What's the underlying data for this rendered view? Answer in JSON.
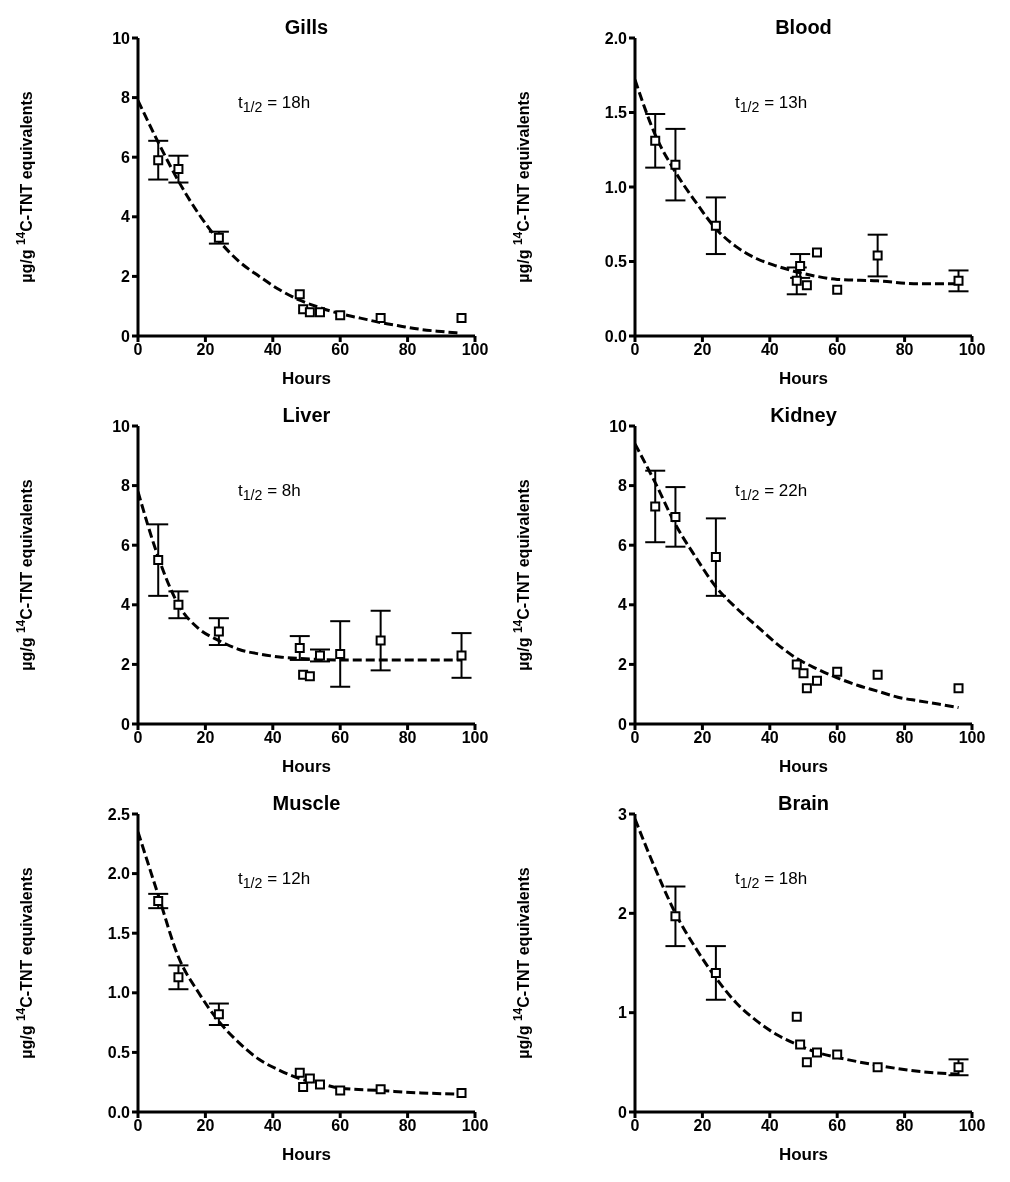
{
  "chart_data": [
    {
      "type": "scatter",
      "title": "Gills",
      "xlabel": "Hours",
      "ylabel": "µg/g $^{14}$C-TNT equivalents",
      "annotations": [
        "t$_{1/2}$ = 18h"
      ],
      "xlim": [
        0,
        100
      ],
      "xticks": [
        0,
        20,
        40,
        60,
        80,
        100
      ],
      "ylim": [
        0,
        10
      ],
      "yticks": [
        0,
        2,
        4,
        6,
        8,
        10
      ],
      "series": [
        {
          "type": "scatter",
          "marker": "square",
          "color": "#000000",
          "x": [
            6,
            12,
            24,
            48,
            49,
            51,
            54,
            60,
            72,
            96
          ],
          "values": [
            5.9,
            5.6,
            3.3,
            1.4,
            0.9,
            0.8,
            0.8,
            0.7,
            0.6,
            0.6
          ],
          "errors": [
            0.65,
            0.45,
            0.2,
            null,
            null,
            null,
            null,
            null,
            null,
            null
          ]
        },
        {
          "type": "line",
          "marker": "none",
          "line_style": "dashed",
          "color": "#000000",
          "x": [
            0,
            6,
            12,
            18,
            24,
            30,
            36,
            42,
            48,
            54,
            60,
            66,
            72,
            78,
            84,
            90,
            95
          ],
          "values": [
            7.9,
            6.5,
            5.2,
            4.1,
            3.2,
            2.5,
            2.0,
            1.55,
            1.2,
            0.95,
            0.75,
            0.6,
            0.45,
            0.33,
            0.22,
            0.15,
            0.1
          ]
        }
      ]
    },
    {
      "type": "scatter",
      "title": "Blood",
      "xlabel": "Hours",
      "ylabel": "µg/g $^{14}$C-TNT equivalents",
      "annotations": [
        "t$_{1/2}$ = 13h"
      ],
      "xlim": [
        0,
        100
      ],
      "xticks": [
        0,
        20,
        40,
        60,
        80,
        100
      ],
      "ylim": [
        0,
        2
      ],
      "yticks": [
        {
          "value": 0,
          "label": "0.0"
        },
        {
          "value": 0.5,
          "label": "0.5"
        },
        {
          "value": 1,
          "label": "1.0"
        },
        {
          "value": 1.5,
          "label": "1.5"
        },
        {
          "value": 2,
          "label": "2.0"
        }
      ],
      "series": [
        {
          "type": "scatter",
          "marker": "square",
          "color": "#000000",
          "x": [
            6,
            12,
            24,
            48,
            49,
            51,
            54,
            60,
            72,
            96
          ],
          "values": [
            1.31,
            1.15,
            0.74,
            0.37,
            0.47,
            0.34,
            0.56,
            0.31,
            0.54,
            0.37
          ],
          "errors": [
            0.18,
            0.24,
            0.19,
            0.09,
            0.08,
            null,
            null,
            null,
            0.14,
            0.07
          ]
        },
        {
          "type": "line",
          "marker": "none",
          "line_style": "dashed",
          "color": "#000000",
          "x": [
            0,
            6,
            12,
            18,
            24,
            30,
            36,
            42,
            48,
            54,
            60,
            72,
            84,
            96
          ],
          "values": [
            1.72,
            1.35,
            1.1,
            0.9,
            0.72,
            0.6,
            0.52,
            0.47,
            0.43,
            0.4,
            0.38,
            0.37,
            0.35,
            0.35
          ]
        }
      ]
    },
    {
      "type": "scatter",
      "title": "Liver",
      "xlabel": "Hours",
      "ylabel": "µg/g $^{14}$C-TNT equivalents",
      "annotations": [
        "t$_{1/2}$ = 8h"
      ],
      "xlim": [
        0,
        100
      ],
      "xticks": [
        0,
        20,
        40,
        60,
        80,
        100
      ],
      "ylim": [
        0,
        10
      ],
      "yticks": [
        0,
        2,
        4,
        6,
        8,
        10
      ],
      "series": [
        {
          "type": "scatter",
          "marker": "square",
          "color": "#000000",
          "x": [
            6,
            12,
            24,
            48,
            49,
            51,
            54,
            60,
            72,
            96
          ],
          "values": [
            5.5,
            4.0,
            3.1,
            2.55,
            1.65,
            1.6,
            2.3,
            2.35,
            2.8,
            2.3
          ],
          "errors": [
            1.2,
            0.45,
            0.45,
            0.4,
            null,
            null,
            0.2,
            1.1,
            1.0,
            0.75
          ]
        },
        {
          "type": "line",
          "marker": "none",
          "line_style": "dashed",
          "color": "#000000",
          "x": [
            0,
            6,
            12,
            18,
            24,
            30,
            36,
            42,
            48,
            60,
            72,
            96
          ],
          "values": [
            7.8,
            5.6,
            4.0,
            3.2,
            2.8,
            2.5,
            2.35,
            2.25,
            2.2,
            2.15,
            2.15,
            2.15
          ]
        }
      ]
    },
    {
      "type": "scatter",
      "title": "Kidney",
      "xlabel": "Hours",
      "ylabel": "µg/g $^{14}$C-TNT equivalents",
      "annotations": [
        "t$_{1/2}$ = 22h"
      ],
      "xlim": [
        0,
        100
      ],
      "xticks": [
        0,
        20,
        40,
        60,
        80,
        100
      ],
      "ylim": [
        0,
        10
      ],
      "yticks": [
        0,
        2,
        4,
        6,
        8,
        10
      ],
      "series": [
        {
          "type": "scatter",
          "marker": "square",
          "color": "#000000",
          "x": [
            6,
            12,
            24,
            48,
            50,
            51,
            54,
            60,
            72,
            96
          ],
          "values": [
            7.3,
            6.95,
            5.6,
            2.0,
            1.7,
            1.2,
            1.45,
            1.75,
            1.65,
            1.2
          ],
          "errors": [
            1.2,
            1.0,
            1.3,
            null,
            null,
            null,
            null,
            null,
            null,
            null
          ]
        },
        {
          "type": "line",
          "marker": "none",
          "line_style": "dashed",
          "color": "#000000",
          "x": [
            0,
            6,
            12,
            18,
            24,
            30,
            36,
            42,
            48,
            54,
            60,
            66,
            72,
            78,
            84,
            90,
            96
          ],
          "values": [
            9.4,
            8.1,
            6.7,
            5.6,
            4.6,
            3.9,
            3.3,
            2.7,
            2.2,
            1.85,
            1.55,
            1.3,
            1.1,
            0.9,
            0.78,
            0.67,
            0.55
          ]
        }
      ]
    },
    {
      "type": "scatter",
      "title": "Muscle",
      "xlabel": "Hours",
      "ylabel": "µg/g $^{14}$C-TNT equivalents",
      "annotations": [
        "t$_{1/2}$ = 12h"
      ],
      "xlim": [
        0,
        100
      ],
      "xticks": [
        0,
        20,
        40,
        60,
        80,
        100
      ],
      "ylim": [
        0,
        2.5
      ],
      "yticks": [
        {
          "value": 0,
          "label": "0.0"
        },
        {
          "value": 0.5,
          "label": "0.5"
        },
        {
          "value": 1,
          "label": "1.0"
        },
        {
          "value": 1.5,
          "label": "1.5"
        },
        {
          "value": 2,
          "label": "2.0"
        },
        {
          "value": 2.5,
          "label": "2.5"
        }
      ],
      "series": [
        {
          "type": "scatter",
          "marker": "square",
          "color": "#000000",
          "x": [
            6,
            12,
            24,
            48,
            49,
            51,
            54,
            60,
            72,
            96
          ],
          "values": [
            1.77,
            1.13,
            0.82,
            0.33,
            0.21,
            0.28,
            0.23,
            0.18,
            0.19,
            0.16
          ],
          "errors": [
            0.06,
            0.1,
            0.09,
            null,
            null,
            null,
            null,
            null,
            null,
            null
          ]
        },
        {
          "type": "line",
          "marker": "none",
          "line_style": "dashed",
          "color": "#000000",
          "x": [
            0,
            6,
            12,
            18,
            24,
            30,
            36,
            42,
            48,
            54,
            60,
            72,
            84,
            96
          ],
          "values": [
            2.35,
            1.82,
            1.3,
            1.0,
            0.76,
            0.58,
            0.44,
            0.35,
            0.28,
            0.24,
            0.2,
            0.18,
            0.16,
            0.15
          ]
        }
      ]
    },
    {
      "type": "scatter",
      "title": "Brain",
      "xlabel": "Hours",
      "ylabel": "µg/g $^{14}$C-TNT equivalents",
      "annotations": [
        "t$_{1/2}$ = 18h"
      ],
      "xlim": [
        0,
        100
      ],
      "xticks": [
        0,
        20,
        40,
        60,
        80,
        100
      ],
      "ylim": [
        0,
        3
      ],
      "yticks": [
        0,
        1,
        2,
        3
      ],
      "series": [
        {
          "type": "scatter",
          "marker": "square",
          "color": "#000000",
          "x": [
            12,
            24,
            48,
            49,
            51,
            54,
            60,
            72,
            96
          ],
          "values": [
            1.97,
            1.4,
            0.96,
            0.68,
            0.5,
            0.6,
            0.58,
            0.45,
            0.45
          ],
          "errors": [
            0.3,
            0.27,
            null,
            null,
            null,
            null,
            null,
            null,
            0.08
          ]
        },
        {
          "type": "line",
          "marker": "none",
          "line_style": "dashed",
          "color": "#000000",
          "x": [
            0,
            6,
            12,
            18,
            24,
            30,
            36,
            42,
            48,
            54,
            60,
            72,
            84,
            96
          ],
          "values": [
            2.95,
            2.45,
            2.0,
            1.65,
            1.35,
            1.1,
            0.92,
            0.78,
            0.68,
            0.6,
            0.55,
            0.47,
            0.41,
            0.38
          ]
        }
      ]
    }
  ]
}
